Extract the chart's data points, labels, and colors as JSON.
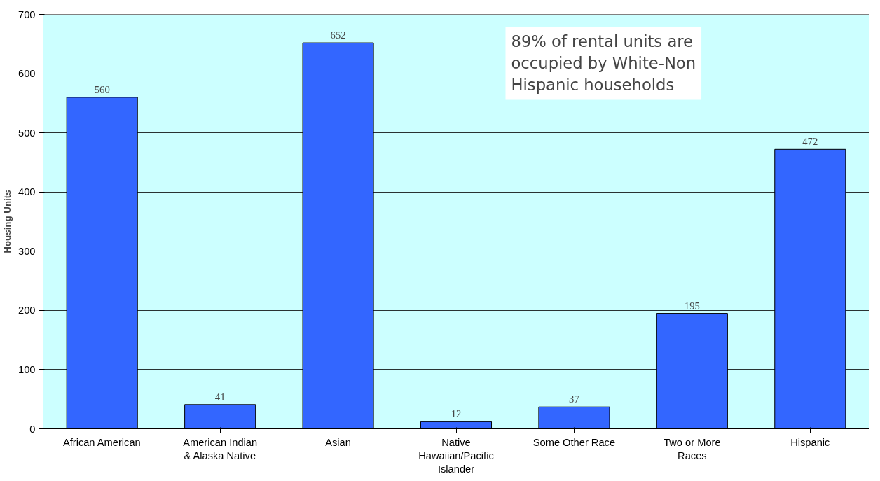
{
  "chart_data": {
    "type": "bar",
    "ylabel": "Housing Units",
    "categories": [
      "African American",
      "American Indian & Alaska Native",
      "Asian",
      "Native Hawaiian/Pacific Islander",
      "Some Other Race",
      "Two or More Races",
      "Hispanic"
    ],
    "values": [
      560,
      41,
      652,
      12,
      37,
      195,
      472
    ],
    "color": "#3366ff",
    "data_labels": true,
    "ylim": [
      0,
      700
    ],
    "yticks": [
      0,
      100,
      200,
      300,
      400,
      500,
      600,
      700
    ],
    "grid": "y",
    "annotations": [
      "89% of rental units are occupied by White-Non Hispanic households"
    ]
  }
}
